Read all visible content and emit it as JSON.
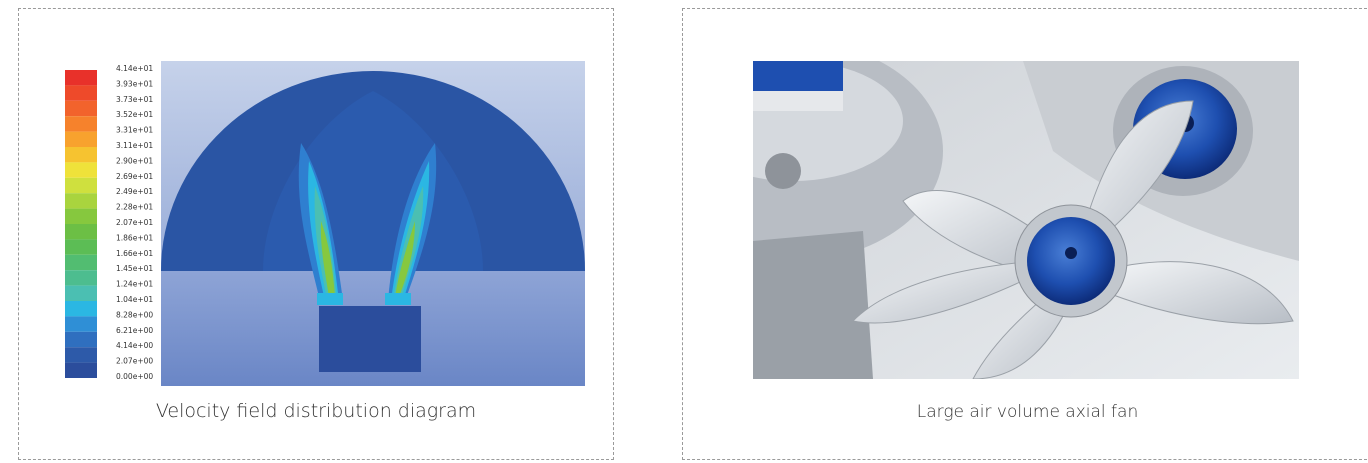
{
  "left_panel": {
    "caption": "Velocity field distribution diagram",
    "colorbar": {
      "labels": [
        "4.14e+01",
        "3.93e+01",
        "3.73e+01",
        "3.52e+01",
        "3.31e+01",
        "3.11e+01",
        "2.90e+01",
        "2.69e+01",
        "2.49e+01",
        "2.28e+01",
        "2.07e+01",
        "1.86e+01",
        "1.66e+01",
        "1.45e+01",
        "1.24e+01",
        "1.04e+01",
        "8.28e+00",
        "6.21e+00",
        "4.14e+00",
        "2.07e+00",
        "0.00e+00"
      ],
      "colors": [
        "#e8312a",
        "#ee4a2a",
        "#f2632c",
        "#f6822c",
        "#f8a22e",
        "#f6c330",
        "#efe23a",
        "#cfe03e",
        "#a9d43e",
        "#86c83e",
        "#6cbf45",
        "#5cbd55",
        "#52bd71",
        "#4dbd8f",
        "#4bbfb2",
        "#2bb7e3",
        "#2f8fd6",
        "#2f6fbf",
        "#2d5aa9",
        "#2b4d9c",
        "#284898"
      ]
    }
  },
  "right_panel": {
    "caption": "Large air volume axial fan"
  }
}
